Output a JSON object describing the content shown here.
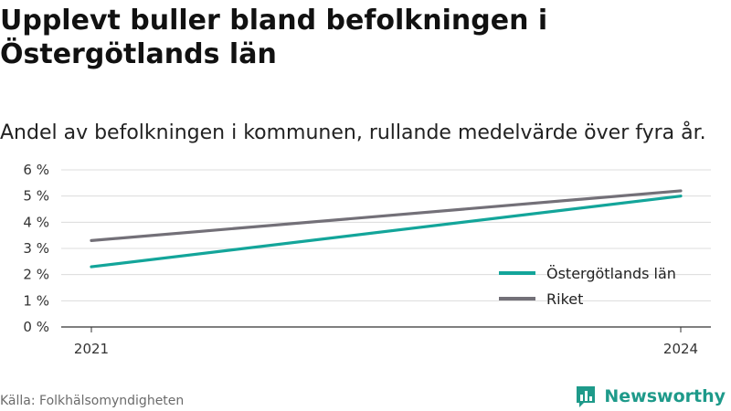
{
  "title": "Upplevt buller bland befolkningen i Östergötlands län",
  "subtitle": "Andel av befolkningen i kommunen, rullande medelvärde över fyra år.",
  "source": "Källa: Folkhälsomyndigheten",
  "brand": {
    "name": "Newsworthy",
    "logo_icon": "bar-chart-logo-icon",
    "color": "#1e9a8a"
  },
  "chart_data": {
    "type": "line",
    "x": [
      2021,
      2024
    ],
    "xticks": [
      "2021",
      "2024"
    ],
    "ylim": [
      0,
      6
    ],
    "yticks": [
      {
        "value": 0,
        "label": "0 %"
      },
      {
        "value": 1,
        "label": "1 %"
      },
      {
        "value": 2,
        "label": "2 %"
      },
      {
        "value": 3,
        "label": "3 %"
      },
      {
        "value": 4,
        "label": "4 %"
      },
      {
        "value": 5,
        "label": "5 %"
      },
      {
        "value": 6,
        "label": "6 %"
      }
    ],
    "grid": true,
    "legend_position": "bottom-right",
    "series": [
      {
        "name": "Östergötlands län",
        "color": "#13a59a",
        "values": [
          2.3,
          5.0
        ]
      },
      {
        "name": "Riket",
        "color": "#737078",
        "values": [
          3.3,
          5.2
        ]
      }
    ]
  }
}
